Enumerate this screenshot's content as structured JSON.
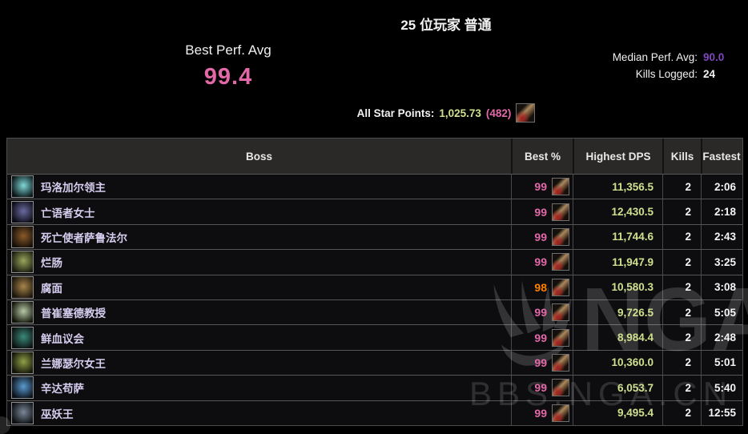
{
  "header": {
    "title": "25 位玩家 普通",
    "best_perf": {
      "label": "Best Perf. Avg",
      "value": "99.4"
    },
    "median": {
      "label": "Median Perf. Avg:",
      "value": "90.0"
    },
    "kills_logged": {
      "label": "Kills Logged:",
      "value": "24"
    },
    "all_star": {
      "label": "All Star Points:",
      "points": "1,025.73",
      "rank": "(482)",
      "icon": "allstar-spec-icon"
    }
  },
  "colors": {
    "pink": "#e268a8",
    "orange": "#ff8000",
    "green": "#cfe08e",
    "purple": "#7e48bd",
    "white": "#f5f5f5"
  },
  "table": {
    "columns": [
      "Boss",
      "Best %",
      "Highest DPS",
      "Kills",
      "Fastest"
    ],
    "rows": [
      {
        "boss": "玛洛加尔领主",
        "best": "99",
        "best_color": "pink",
        "dps": "11,356.5",
        "kills": "2",
        "fastest": "2:06",
        "boss_icon": "boss-icon-marrowgar",
        "icon_from": "#7fd8d8",
        "icon_to": "#0a1416"
      },
      {
        "boss": "亡语者女士",
        "best": "99",
        "best_color": "pink",
        "dps": "12,430.5",
        "kills": "2",
        "fastest": "2:18",
        "boss_icon": "boss-icon-deathwhisper",
        "icon_from": "#6a6aa0",
        "icon_to": "#0b0b14"
      },
      {
        "boss": "死亡使者萨鲁法尔",
        "best": "99",
        "best_color": "pink",
        "dps": "11,744.6",
        "kills": "2",
        "fastest": "2:43",
        "boss_icon": "boss-icon-saurfang",
        "icon_from": "#8a5a2a",
        "icon_to": "#140e08"
      },
      {
        "boss": "烂肠",
        "best": "99",
        "best_color": "pink",
        "dps": "11,947.9",
        "kills": "2",
        "fastest": "3:25",
        "boss_icon": "boss-icon-rotface",
        "icon_from": "#9aa55a",
        "icon_to": "#1a1c10"
      },
      {
        "boss": "腐面",
        "best": "98",
        "best_color": "orange",
        "dps": "10,580.3",
        "kills": "2",
        "fastest": "3:08",
        "boss_icon": "boss-icon-festergut",
        "icon_from": "#a8854a",
        "icon_to": "#1a140c"
      },
      {
        "boss": "普崔塞德教授",
        "best": "99",
        "best_color": "pink",
        "dps": "9,726.5",
        "kills": "2",
        "fastest": "5:05",
        "boss_icon": "boss-icon-putricide",
        "icon_from": "#b8c8a8",
        "icon_to": "#101408"
      },
      {
        "boss": "鲜血议会",
        "best": "99",
        "best_color": "pink",
        "dps": "8,984.4",
        "kills": "2",
        "fastest": "2:48",
        "boss_icon": "boss-icon-blood-council",
        "icon_from": "#3a8a7a",
        "icon_to": "#0c1010"
      },
      {
        "boss": "兰娜瑟尔女王",
        "best": "99",
        "best_color": "pink",
        "dps": "10,360.0",
        "kills": "2",
        "fastest": "5:01",
        "boss_icon": "boss-icon-lanathel",
        "icon_from": "#90a048",
        "icon_to": "#121408"
      },
      {
        "boss": "辛达苟萨",
        "best": "99",
        "best_color": "pink",
        "dps": "6,053.7",
        "kills": "2",
        "fastest": "5:40",
        "boss_icon": "boss-icon-sindragosa",
        "icon_from": "#5a9ad0",
        "icon_to": "#0a1018"
      },
      {
        "boss": "巫妖王",
        "best": "99",
        "best_color": "pink",
        "dps": "9,495.4",
        "kills": "2",
        "fastest": "12:55",
        "boss_icon": "boss-icon-lich-king",
        "icon_from": "#7a8898",
        "icon_to": "#0c0e12"
      }
    ]
  },
  "watermark": {
    "logo": "NGA",
    "site": "BBS.NGA.CN"
  }
}
